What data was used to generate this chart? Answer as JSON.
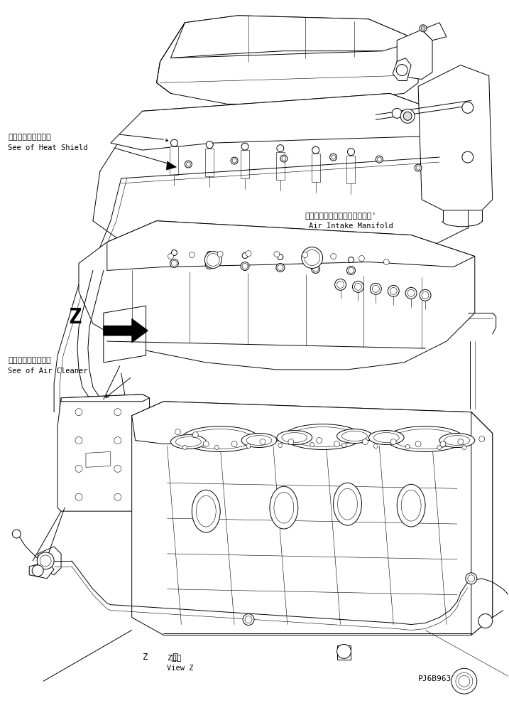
{
  "bg_color": "#ffffff",
  "line_color": "#000000",
  "figsize": [
    7.17,
    9.96
  ],
  "dpi": 100,
  "labels": {
    "heat_shield_jp": "ヒートシールド参照",
    "heat_shield_en": "See of Heat Shield",
    "air_intake_jp": "エアーインテークマニホールド'",
    "air_intake_en": "Air Intake Manifold",
    "air_cleaner_jp": "エアークリーナ参照",
    "air_cleaner_en": "See of Air Cleaner",
    "view_z_jp": "Z　視",
    "view_z_en": "View Z",
    "part_number": "PJ6B963",
    "z_label": "Z"
  },
  "lw": 0.7,
  "lw_thin": 0.4,
  "lw_thick": 1.2
}
